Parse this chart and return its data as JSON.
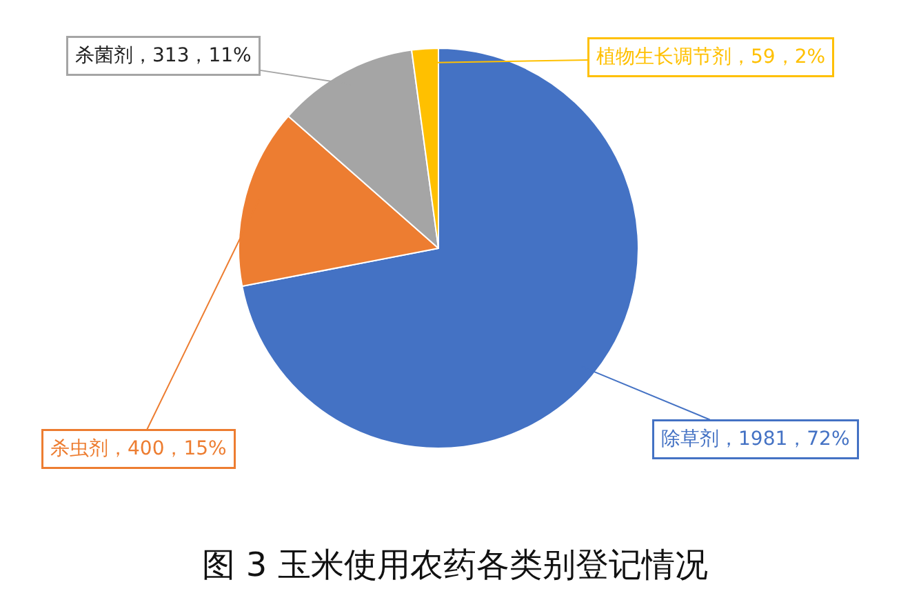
{
  "chart_data": {
    "type": "pie",
    "title": "图 3 玉米使用农药各类别登记情况",
    "categories": [
      "除草剂",
      "杀虫剂",
      "杀菌剂",
      "植物生长调节剂"
    ],
    "values": [
      1981,
      400,
      313,
      59
    ],
    "value_labels": [
      "1981，72%",
      "400，15%",
      "313，11%",
      "59，2%"
    ],
    "colors": [
      "#4472c4",
      "#ed7d31",
      "#a5a5a5",
      "#ffc000"
    ],
    "legend": false
  }
}
